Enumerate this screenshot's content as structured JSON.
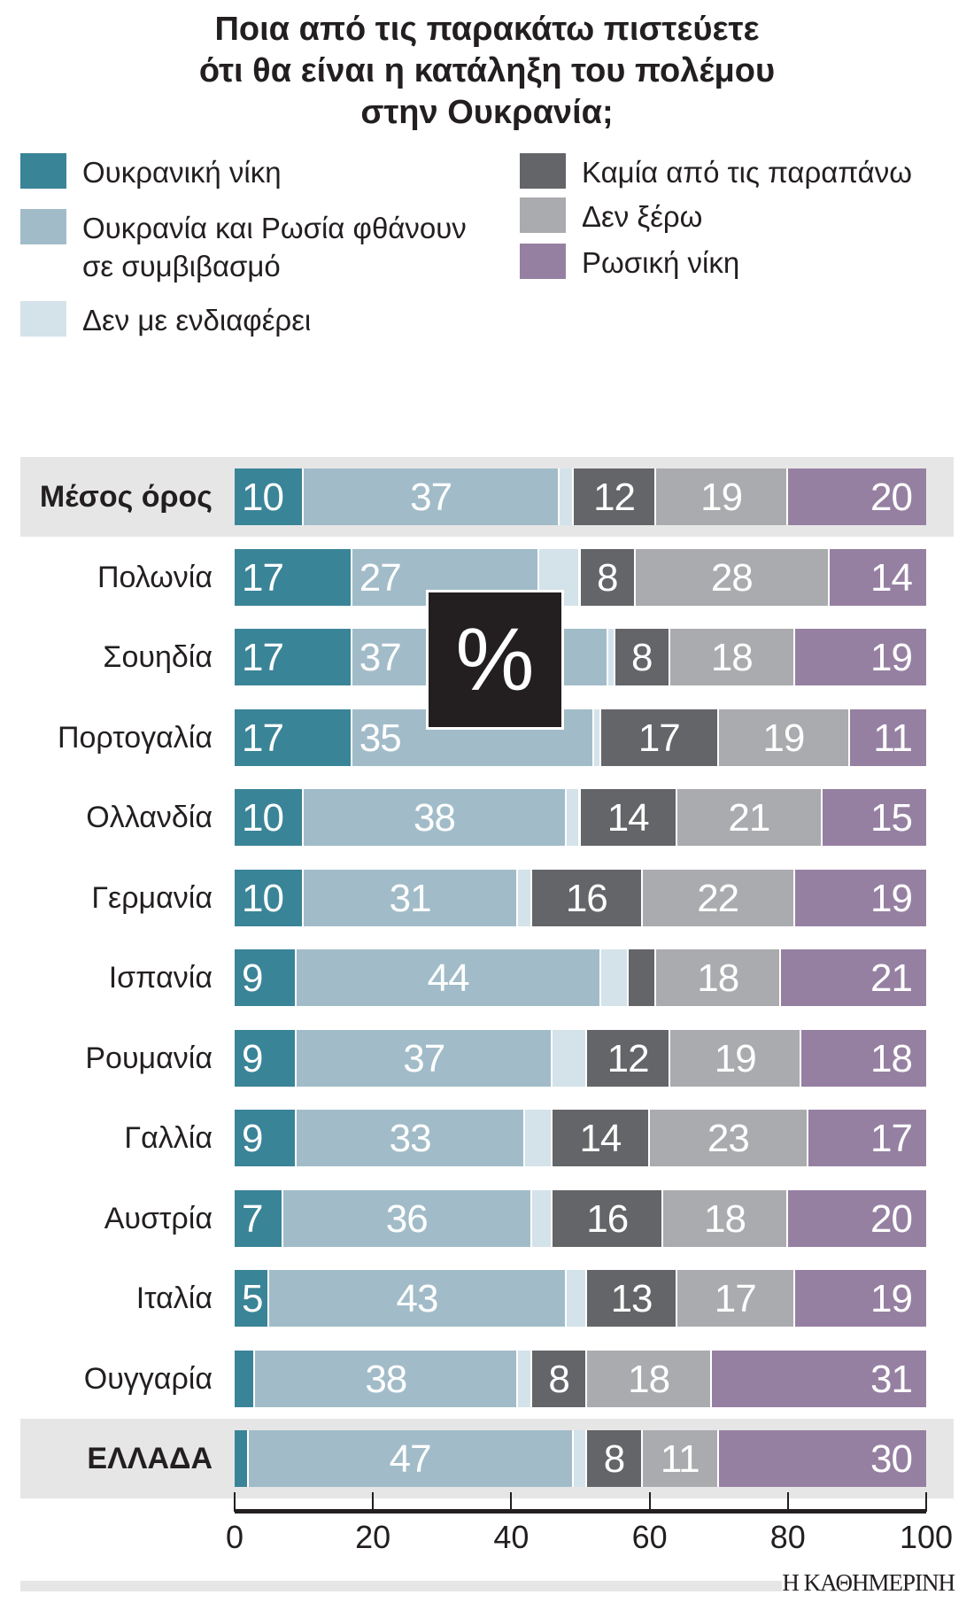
{
  "chart_data": {
    "type": "bar",
    "orientation": "horizontal",
    "stacked": true,
    "title": "Ποια από τις παρακάτω πιστεύετε ότι θα είναι η κατάληξη του πολέμου στην Ουκρανία;",
    "title_lines": [
      "Ποια από τις παρακάτω πιστεύετε",
      "ότι θα είναι η κατάληξη του πολέμου",
      "στην Ουκρανία;"
    ],
    "unit_badge": "%",
    "xlim": [
      0,
      100
    ],
    "x_ticks": [
      0,
      20,
      40,
      60,
      80,
      100
    ],
    "grid": false,
    "legend_placement": "top",
    "categories": [
      "Μέσος όρος",
      "Πολωνία",
      "Σουηδία",
      "Πορτογαλία",
      "Ολλανδία",
      "Γερμανία",
      "Ισπανία",
      "Ρουμανία",
      "Γαλλία",
      "Αυστρία",
      "Ιταλία",
      "Ουγγαρία",
      "ΕΛΛΑΔΑ"
    ],
    "highlighted": [
      "Μέσος όρος",
      "ΕΛΛΑΔΑ"
    ],
    "series": [
      {
        "name": "Ουκρανική νίκη",
        "color": "#3a8498",
        "values": [
          10,
          17,
          17,
          17,
          10,
          10,
          9,
          9,
          9,
          7,
          5,
          3,
          2
        ]
      },
      {
        "name": "Ουκρανία και Ρωσία φθάνουν σε συμβιβασμό",
        "color": "#a1bcc8",
        "values": [
          37,
          27,
          37,
          35,
          38,
          31,
          44,
          37,
          33,
          36,
          43,
          38,
          47
        ]
      },
      {
        "name": "Δεν με ενδιαφέρει",
        "color": "#d4e2ea",
        "values": [
          2,
          6,
          1,
          1,
          2,
          2,
          4,
          5,
          4,
          3,
          3,
          2,
          2
        ]
      },
      {
        "name": "Καμία από τις παραπάνω",
        "color": "#646568",
        "values": [
          12,
          8,
          8,
          17,
          14,
          16,
          4,
          12,
          14,
          16,
          13,
          8,
          8
        ]
      },
      {
        "name": "Δεν ξέρω",
        "color": "#aaabae",
        "values": [
          19,
          28,
          18,
          19,
          21,
          22,
          18,
          19,
          23,
          18,
          17,
          18,
          11
        ]
      },
      {
        "name": "Ρωσική νίκη",
        "color": "#9680a2",
        "values": [
          20,
          14,
          19,
          11,
          15,
          19,
          21,
          18,
          17,
          20,
          19,
          31,
          30
        ]
      }
    ],
    "legend_left": [
      "Ουκρανική νίκη",
      "Ουκρανία και Ρωσία φθάνουν\nσε συμβιβασμό",
      "Δεν με ενδιαφέρει"
    ],
    "legend_right": [
      "Καμία από τις παραπάνω",
      "Δεν ξέρω",
      "Ρωσική νίκη"
    ]
  },
  "source_logo": "Η ΚΑΘΗΜΕΡΙΝΗ"
}
